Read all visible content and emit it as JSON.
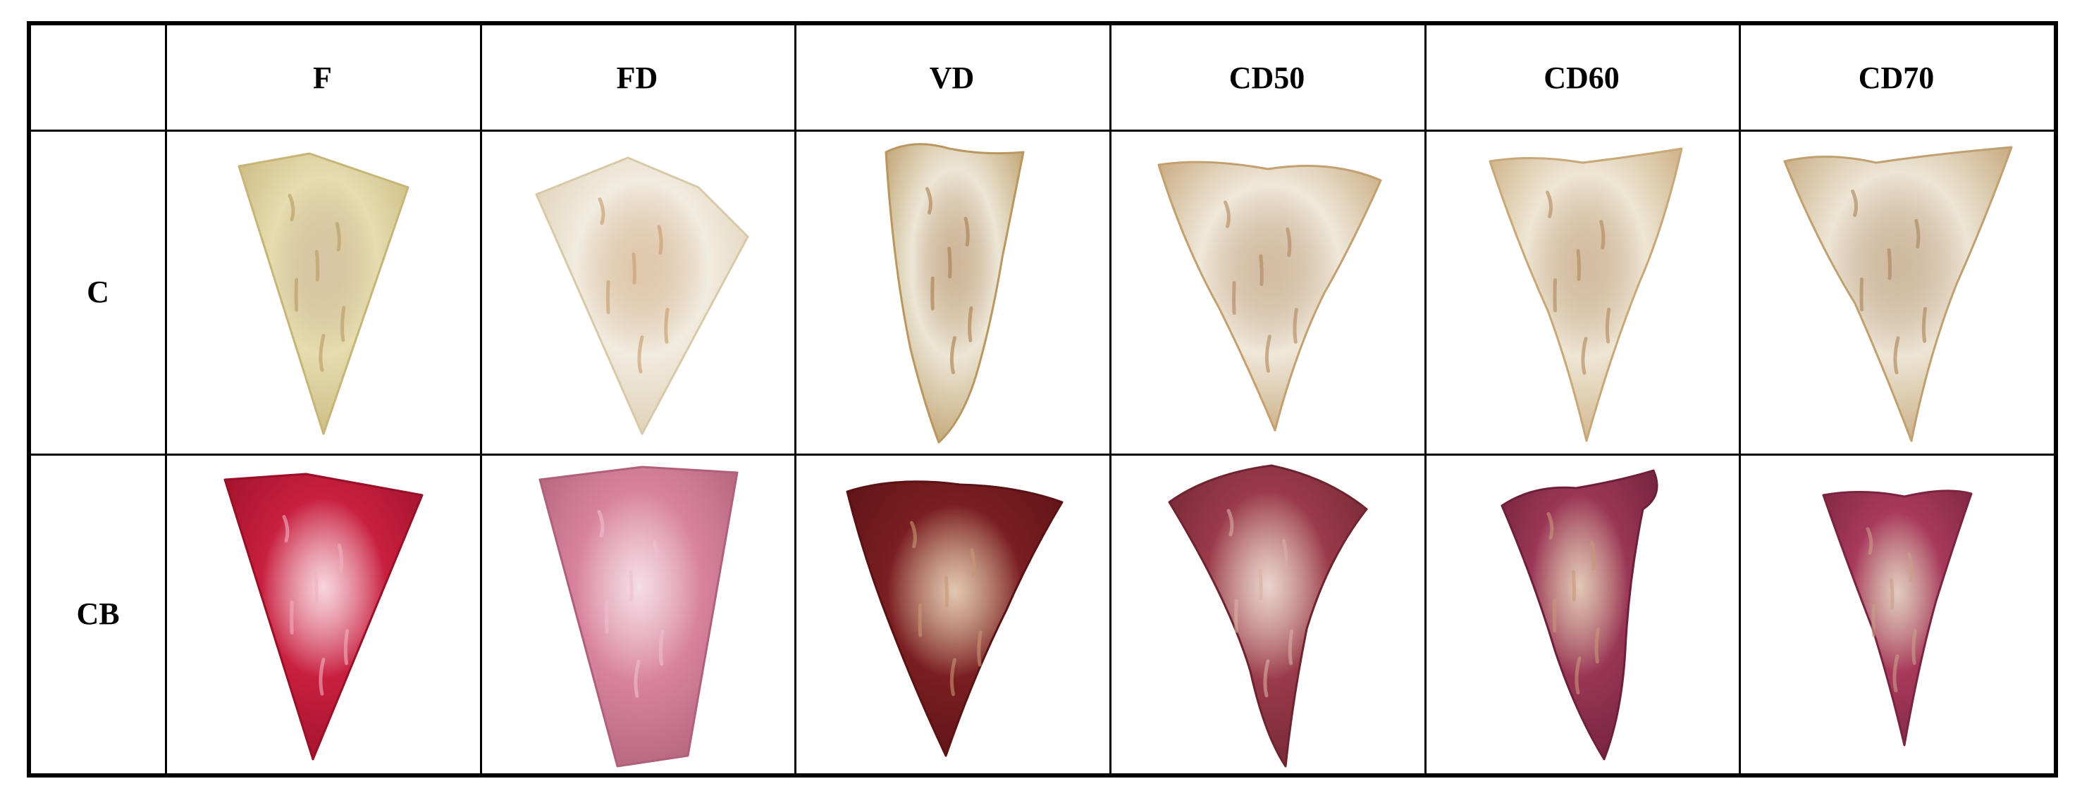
{
  "columns": [
    "F",
    "FD",
    "VD",
    "CD50",
    "CD60",
    "CD70"
  ],
  "rows": [
    {
      "label": "C",
      "samples": [
        {
          "fill": "#e6dcb0",
          "edge": "#c7b578",
          "spot": "#b89a60"
        },
        {
          "fill": "#f1ece0",
          "edge": "#d9c9a8",
          "spot": "#c79a6a"
        },
        {
          "fill": "#ece6d6",
          "edge": "#b9975f",
          "spot": "#a97c4a"
        },
        {
          "fill": "#efe8da",
          "edge": "#c3a070",
          "spot": "#b0865a"
        },
        {
          "fill": "#eee6d4",
          "edge": "#c8a878",
          "spot": "#b08658"
        },
        {
          "fill": "#ede5d5",
          "edge": "#c0a070",
          "spot": "#a98256"
        }
      ]
    },
    {
      "label": "CB",
      "samples": [
        {
          "fill": "#c8203e",
          "edge": "#9a1028",
          "spot": "#f0b0c0"
        },
        {
          "fill": "#d9849e",
          "edge": "#b0607a",
          "spot": "#ecc0ce"
        },
        {
          "fill": "#7a1e22",
          "edge": "#5a1214",
          "spot": "#c89870"
        },
        {
          "fill": "#9a3a4a",
          "edge": "#6e2430",
          "spot": "#d8b0a0"
        },
        {
          "fill": "#9a3656",
          "edge": "#6e203a",
          "spot": "#c89878"
        },
        {
          "fill": "#a83a5c",
          "edge": "#7a2440",
          "spot": "#c8a088"
        }
      ]
    }
  ]
}
